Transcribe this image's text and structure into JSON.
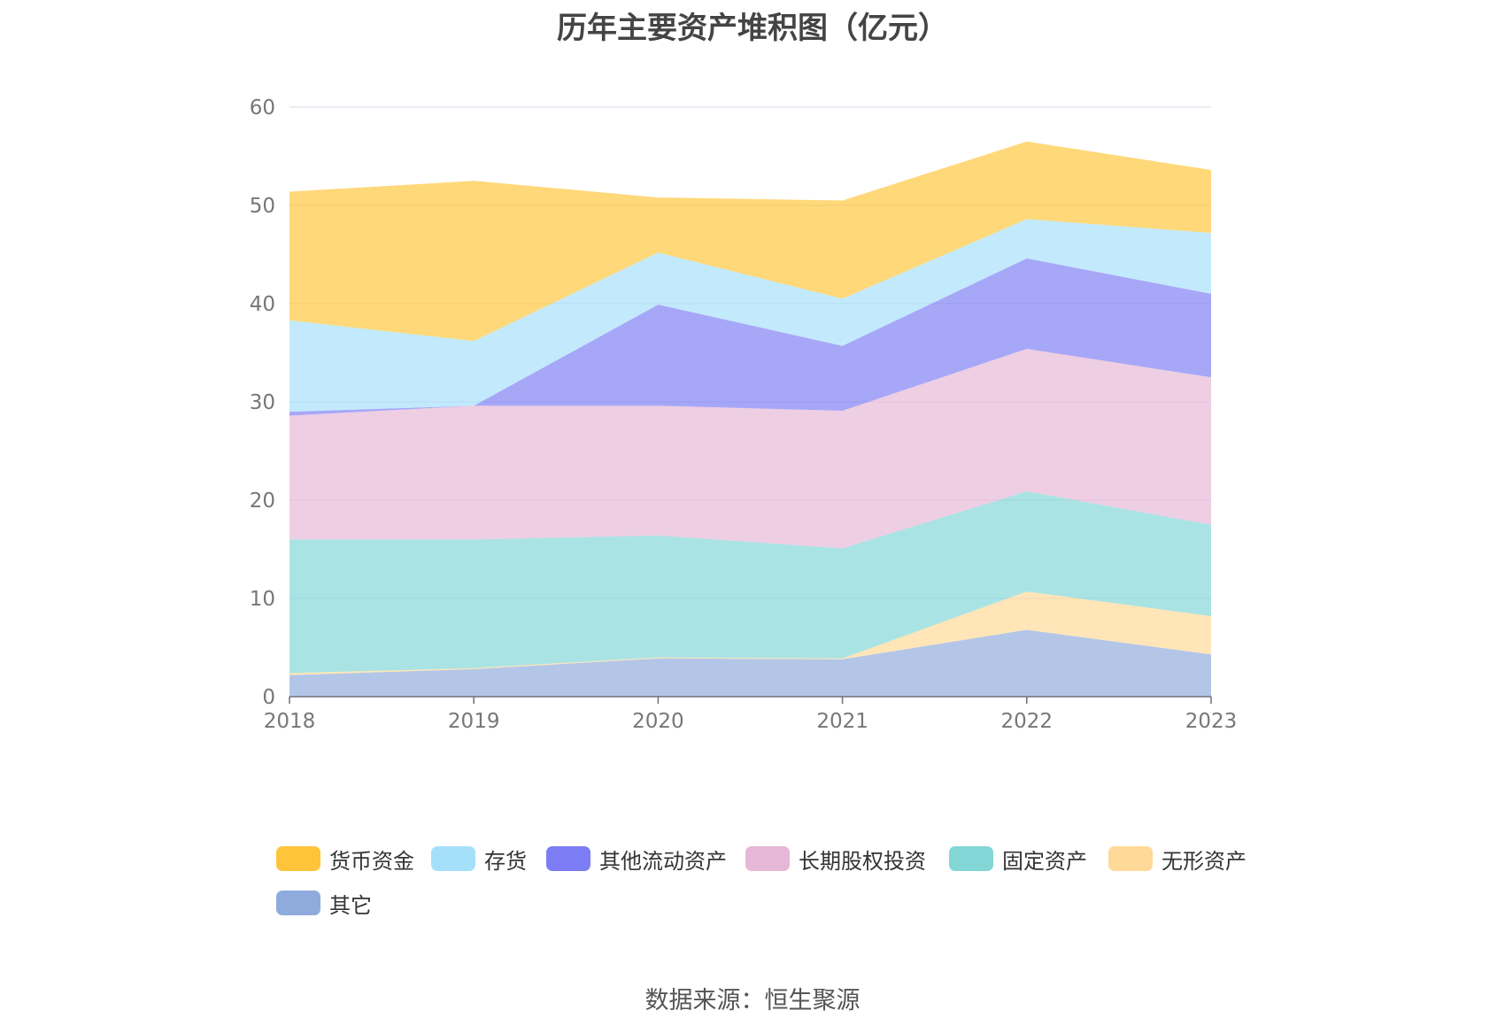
{
  "source": "数据来源：恒生聚源",
  "chart_data": {
    "type": "area",
    "stacked": true,
    "title": "历年主要资产堆积图（亿元）",
    "xlabel": "",
    "ylabel": "",
    "ylim": [
      0,
      60
    ],
    "yticks": [
      0,
      10,
      20,
      30,
      40,
      50,
      60
    ],
    "grid": true,
    "legend_position": "bottom",
    "categories": [
      "2018",
      "2019",
      "2020",
      "2021",
      "2022",
      "2023"
    ],
    "series": [
      {
        "name": "其它",
        "color": "#8fabdd",
        "values": [
          2.2,
          2.8,
          3.9,
          3.8,
          6.8,
          4.3
        ]
      },
      {
        "name": "无形资产",
        "color": "#ffd997",
        "values": [
          0.2,
          0.1,
          0.1,
          0.1,
          3.9,
          3.9
        ]
      },
      {
        "name": "固定资产",
        "color": "#82d6d6",
        "values": [
          13.6,
          13.1,
          12.4,
          11.2,
          10.2,
          9.3
        ]
      },
      {
        "name": "长期股权投资",
        "color": "#e6b7d6",
        "values": [
          12.6,
          13.6,
          13.2,
          14.0,
          14.5,
          15.0
        ]
      },
      {
        "name": "其他流动资产",
        "color": "#7d7df5",
        "values": [
          0.4,
          0.0,
          10.3,
          6.6,
          9.2,
          8.5
        ]
      },
      {
        "name": "存货",
        "color": "#a5e0fa",
        "values": [
          9.3,
          6.6,
          5.3,
          4.8,
          4.0,
          6.2
        ]
      },
      {
        "name": "货币资金",
        "color": "#ffc53a",
        "values": [
          13.1,
          16.3,
          5.6,
          10.0,
          7.9,
          6.4
        ]
      }
    ],
    "legend_order": [
      "货币资金",
      "存货",
      "其他流动资产",
      "长期股权投资",
      "固定资产",
      "无形资产",
      "其它"
    ]
  }
}
